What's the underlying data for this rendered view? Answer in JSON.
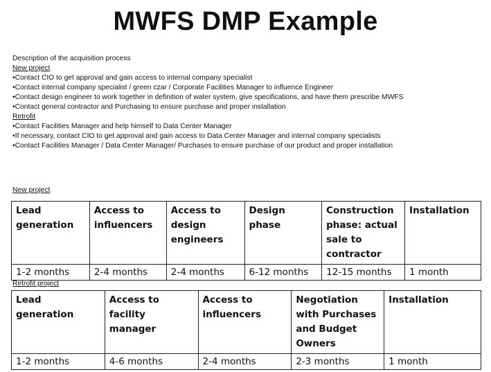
{
  "title": "MWFS DMP Example",
  "description": {
    "heading": "Description of the acquisition process",
    "new_project_label": "New project",
    "new_project_items": [
      "•Contact CIO to get approval and gain access to internal company specialist",
      "•Contact internal company specialist / green czar / Corporate Facilities Manager to influence Engineer",
      "•Contact design engineer to work together in definition of water system, give specifications, and have them prescribe MWFS",
      "•Contact general contractor and Purchasing to ensure purchase and proper installation"
    ],
    "retrofit_label": "Retrofit",
    "retrofit_items": [
      "•Contact Facilities Manager and help himself to Data Center Manager",
      "•If necessary,  contact CIO to get approval and gain access to Data Center Manager and internal company specialists",
      "•Contact Facilities Manager / Data Center Manager/ Purchases to ensure purchase of our product and proper installation"
    ]
  },
  "new_project_table": {
    "label": "New project",
    "headers": [
      "Lead generation",
      "Access to influencers",
      "Access to design engineers",
      "Design phase",
      "Construction phase: actual sale to contractor",
      "Installation"
    ],
    "durations": [
      "1-2 months",
      "2-4 months",
      "2-4 months",
      "6-12 months",
      "12-15 months",
      "1 month"
    ]
  },
  "retrofit_table": {
    "label": "Retrofit project",
    "headers": [
      "Lead generation",
      "Access to facility manager",
      "Access to influencers",
      "Negotiation with Purchases and Budget Owners",
      "Installation"
    ],
    "durations": [
      "1-2 months",
      "4-6 months",
      "2-4 months",
      "2-3 months",
      "1 month"
    ]
  }
}
